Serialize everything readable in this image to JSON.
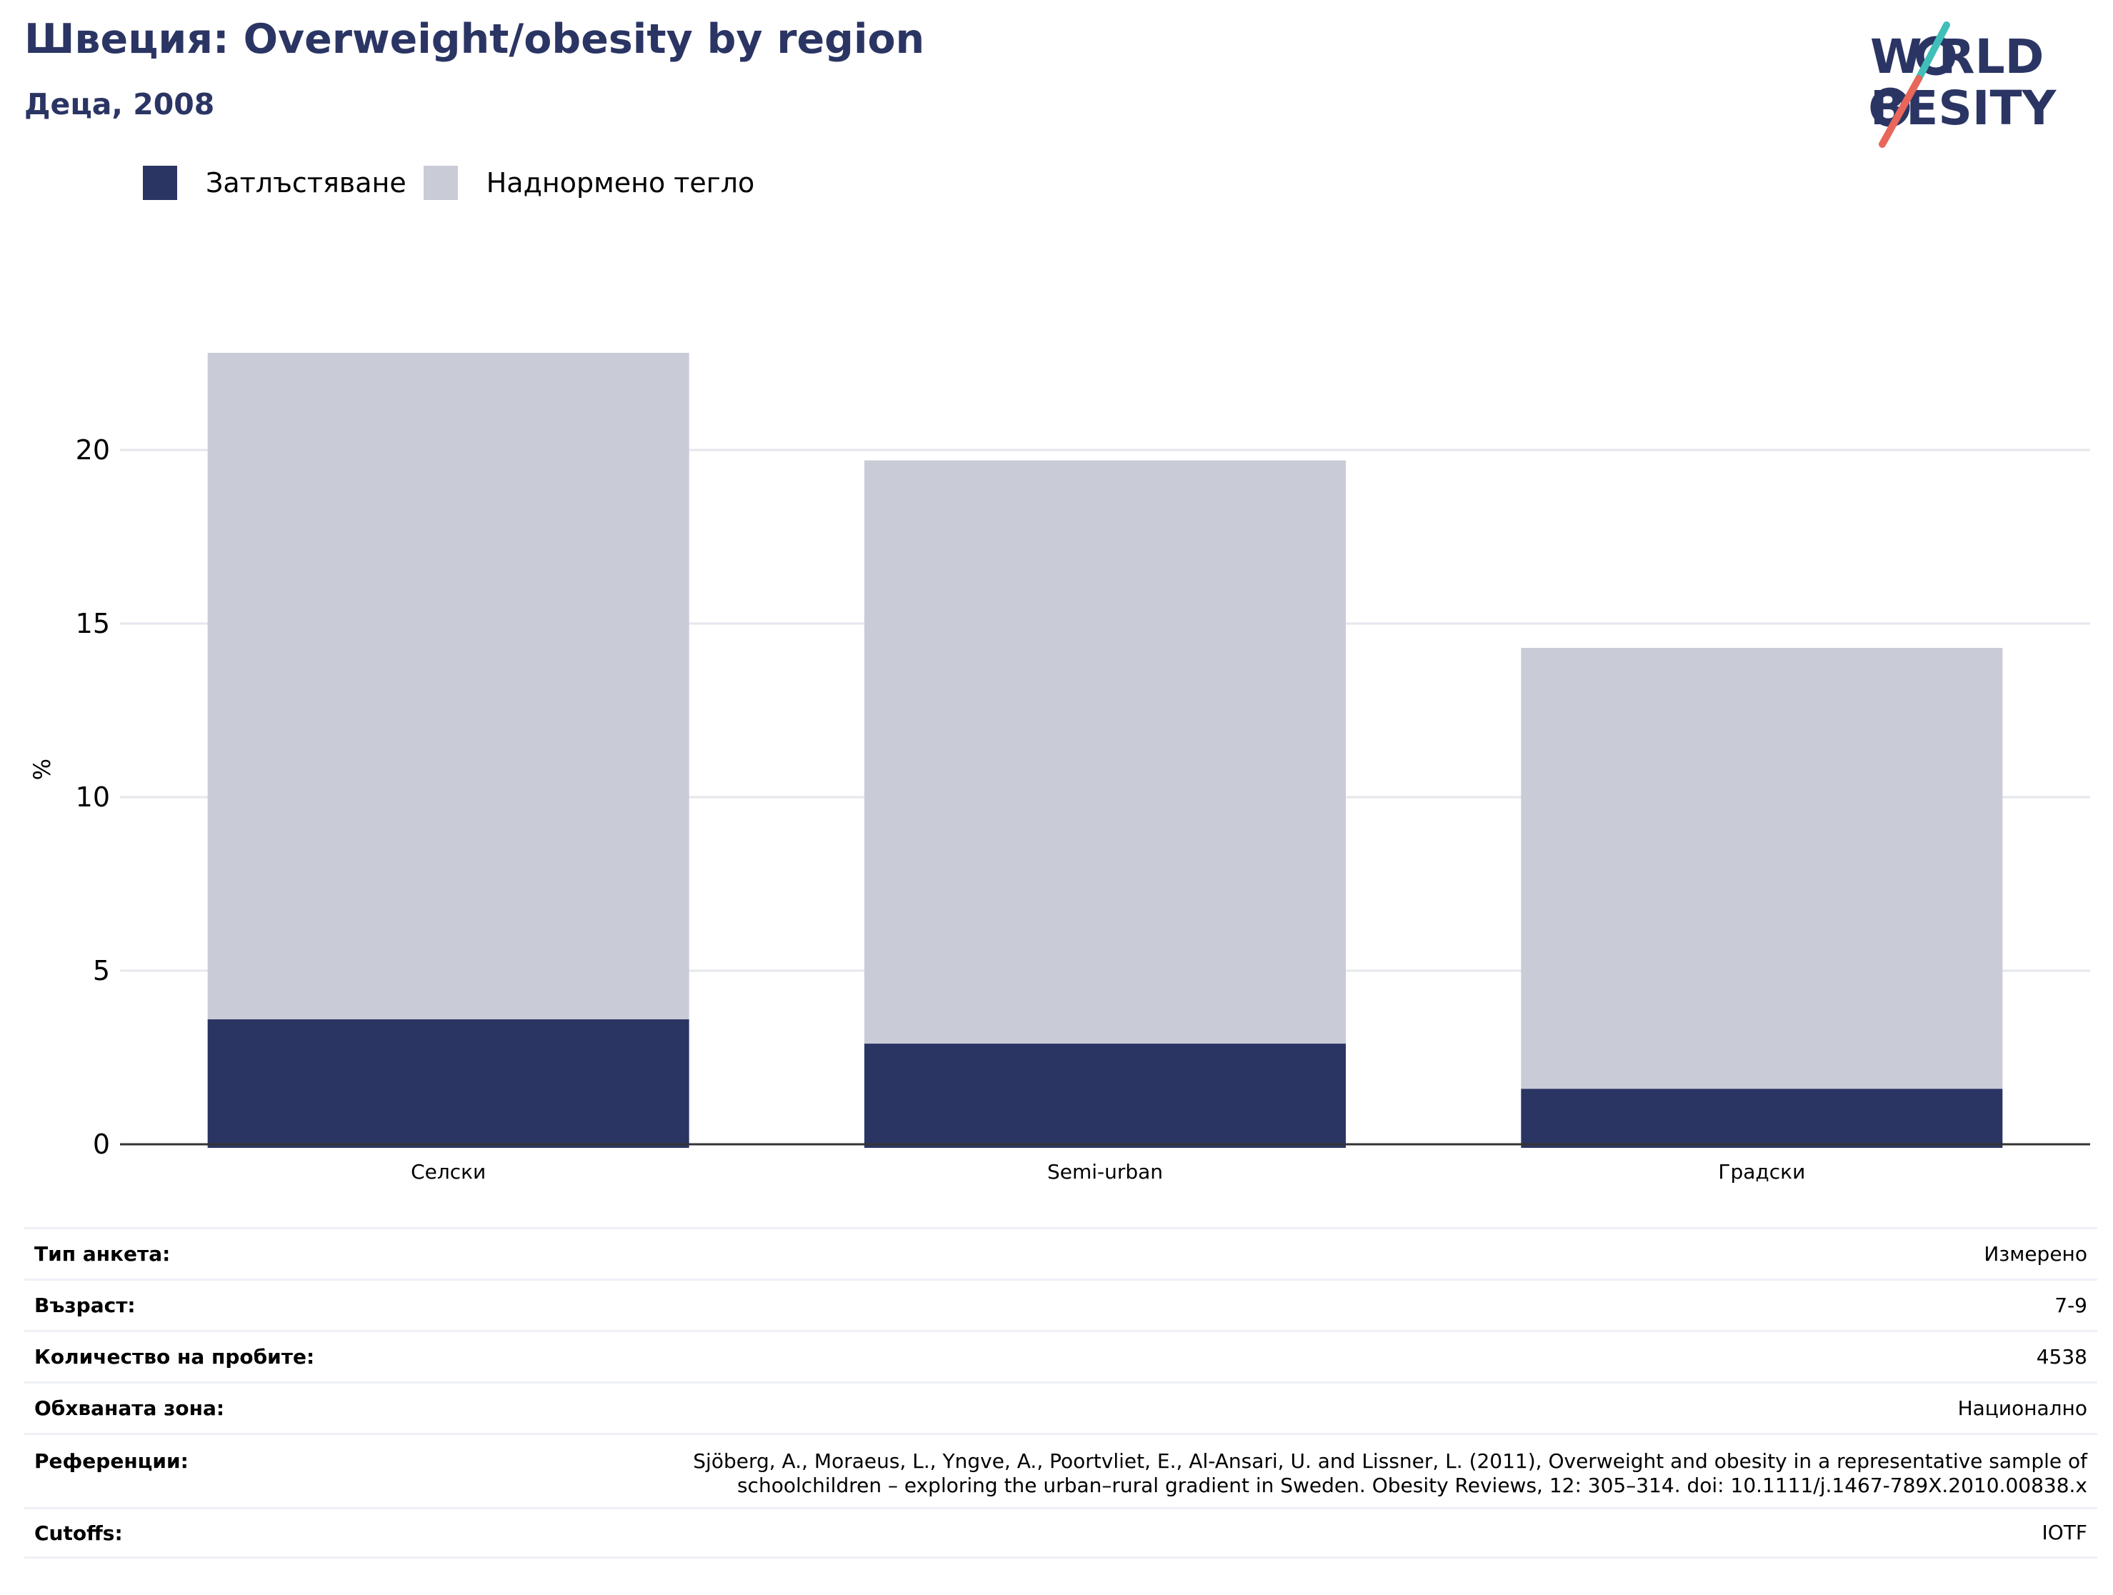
{
  "header": {
    "title": "Швеция: Overweight/obesity by region",
    "subtitle": "Деца, 2008"
  },
  "logo": {
    "line1": "W RLD",
    "line2": "BESITY",
    "text": "WORLD OBESITY",
    "colors": {
      "navy": "#2b3564",
      "teal": "#3fbfb8",
      "coral": "#e8665a"
    }
  },
  "legend": {
    "items": [
      {
        "label": "Затлъстяване",
        "color": "#2b3564"
      },
      {
        "label": "Наднормено тегло",
        "color": "#c9cbd7"
      }
    ]
  },
  "chart_data": {
    "type": "bar",
    "stacked": true,
    "categories": [
      "Селски",
      "Semi-urban",
      "Градски"
    ],
    "series": [
      {
        "name": "Затлъстяване",
        "values": [
          3.6,
          2.9,
          1.6
        ],
        "color": "#2b3564"
      },
      {
        "name": "Наднормено тегло",
        "values": [
          19.2,
          16.8,
          12.7
        ],
        "color": "#c9cbd7"
      }
    ],
    "ylabel": "%",
    "ylim": [
      0,
      25
    ],
    "yticks": [
      0,
      5,
      10,
      15,
      20
    ],
    "grid": true,
    "legend_position": "top-left"
  },
  "info": [
    {
      "label": "Тип анкета:",
      "value": "Измерено"
    },
    {
      "label": "Възраст:",
      "value": "7-9"
    },
    {
      "label": "Количество на пробите:",
      "value": "4538"
    },
    {
      "label": "Обхваната зона:",
      "value": "Национално"
    },
    {
      "label": "Референции:",
      "value": "Sjöberg, A., Moraeus, L., Yngve, A., Poortvliet, E., Al-Ansari, U. and Lissner, L. (2011), Overweight and obesity in a representative sample of schoolchildren – exploring the urban–rural gradient in Sweden. Obesity Reviews, 12: 305–314. doi: 10.1111/j.1467-789X.2010.00838.x"
    },
    {
      "label": "Cutoffs:",
      "value": "IOTF"
    }
  ]
}
